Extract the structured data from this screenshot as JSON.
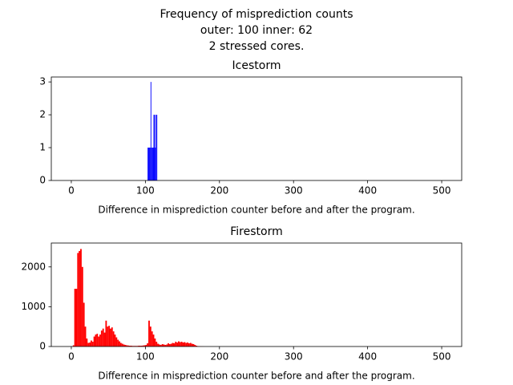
{
  "title": [
    "Frequency of misprediction counts",
    "outer: 100  inner: 62",
    "2 stressed cores."
  ],
  "chart_data": [
    {
      "type": "histogram",
      "title": "Icestorm",
      "xlabel": "Difference in misprediction counter before and after the program.",
      "color": "blue",
      "bins": [
        103,
        104,
        105,
        106,
        107,
        108,
        109,
        110,
        111,
        112,
        113,
        114,
        115,
        116
      ],
      "values": [
        1,
        1,
        1,
        1,
        3,
        1,
        1,
        1,
        2,
        2,
        1,
        2,
        2
      ],
      "xlim": [
        -27,
        527
      ],
      "xticks": [
        0,
        100,
        200,
        300,
        400,
        500
      ],
      "ylim": [
        0,
        3.15
      ],
      "yticks": [
        0,
        1,
        2,
        3
      ]
    },
    {
      "type": "histogram",
      "title": "Firestorm",
      "xlabel": "Difference in misprediction counter before and after the program.",
      "color": "red",
      "bins": [
        0,
        2,
        4,
        6,
        8,
        10,
        12,
        14,
        16,
        18,
        20,
        22,
        24,
        26,
        28,
        30,
        32,
        34,
        36,
        38,
        40,
        42,
        44,
        46,
        48,
        50,
        52,
        54,
        56,
        58,
        60,
        62,
        64,
        66,
        68,
        70,
        72,
        74,
        76,
        78,
        80,
        82,
        84,
        86,
        88,
        90,
        92,
        94,
        96,
        98,
        100,
        102,
        104,
        106,
        108,
        110,
        112,
        114,
        116,
        118,
        120,
        122,
        124,
        126,
        128,
        130,
        132,
        134,
        136,
        138,
        140,
        142,
        144,
        146,
        148,
        150,
        152,
        154,
        156,
        158,
        160,
        162,
        164,
        166,
        168,
        170,
        172,
        174,
        176,
        178,
        180
      ],
      "values": [
        0,
        30,
        1450,
        1450,
        2350,
        2400,
        2450,
        2000,
        1100,
        500,
        200,
        90,
        100,
        150,
        120,
        250,
        300,
        320,
        250,
        300,
        400,
        450,
        350,
        650,
        500,
        520,
        450,
        480,
        380,
        300,
        230,
        170,
        130,
        90,
        70,
        50,
        40,
        30,
        25,
        20,
        20,
        15,
        15,
        15,
        15,
        20,
        20,
        20,
        25,
        30,
        40,
        80,
        650,
        500,
        380,
        300,
        200,
        120,
        70,
        50,
        40,
        60,
        50,
        40,
        50,
        80,
        60,
        70,
        90,
        80,
        120,
        100,
        130,
        110,
        120,
        100,
        110,
        90,
        100,
        80,
        90,
        70,
        60,
        40,
        20,
        10,
        5,
        3,
        2,
        1
      ],
      "xlim": [
        -27,
        527
      ],
      "xticks": [
        0,
        100,
        200,
        300,
        400,
        500
      ],
      "ylim": [
        0,
        2600
      ],
      "yticks": [
        0,
        1000,
        2000
      ]
    }
  ]
}
